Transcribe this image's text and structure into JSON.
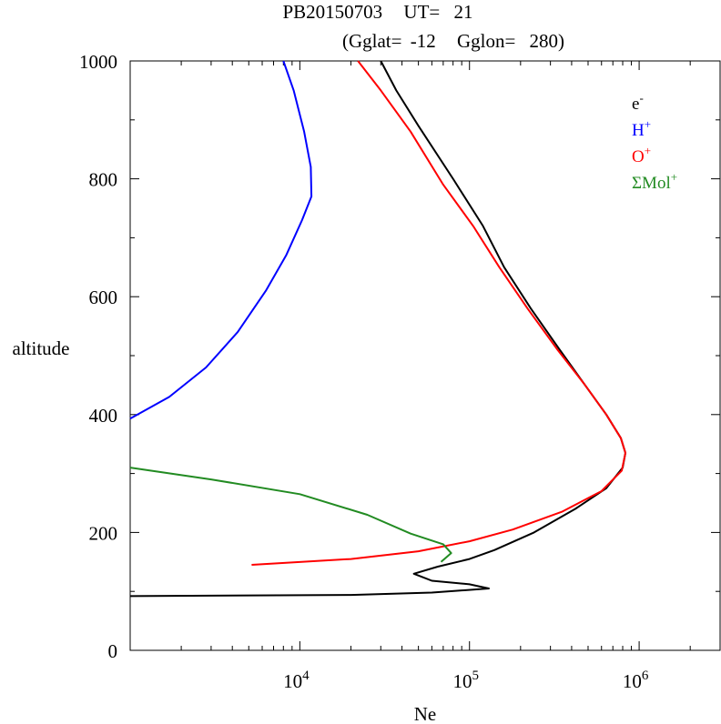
{
  "chart_data": {
    "type": "line",
    "title_line1": {
      "id": "PB20150703",
      "ut_label": "UT=",
      "ut_value": "21"
    },
    "title_line2": {
      "glat_label": "(Gglat=",
      "glat_value": "-12",
      "glon_label": "Gglon=",
      "glon_value": "280)"
    },
    "xlabel": "Ne",
    "ylabel": "altitude",
    "x_scale": "log",
    "xlim": [
      1000,
      3000000
    ],
    "ylim": [
      0,
      1000
    ],
    "x_ticks": [
      {
        "value": 10000,
        "base": "10",
        "exp": "4"
      },
      {
        "value": 100000,
        "base": "10",
        "exp": "5"
      },
      {
        "value": 1000000,
        "base": "10",
        "exp": "6"
      }
    ],
    "y_ticks": [
      {
        "value": 0,
        "label": "0"
      },
      {
        "value": 200,
        "label": "200"
      },
      {
        "value": 400,
        "label": "400"
      },
      {
        "value": 600,
        "label": "600"
      },
      {
        "value": 800,
        "label": "800"
      },
      {
        "value": 1000,
        "label": "1000"
      }
    ],
    "grid": false,
    "legend_position": "top-right",
    "series": [
      {
        "key": "e",
        "label_base": "e",
        "label_sup": "-",
        "color": "#000000",
        "points": [
          [
            1000,
            92
          ],
          [
            20000,
            94
          ],
          [
            60000,
            98
          ],
          [
            130000,
            105
          ],
          [
            100000,
            112
          ],
          [
            60000,
            118
          ],
          [
            47000,
            130
          ],
          [
            65000,
            142
          ],
          [
            100000,
            155
          ],
          [
            140000,
            170
          ],
          [
            240000,
            200
          ],
          [
            420000,
            240
          ],
          [
            640000,
            275
          ],
          [
            800000,
            310
          ],
          [
            830000,
            335
          ],
          [
            780000,
            360
          ],
          [
            640000,
            400
          ],
          [
            480000,
            450
          ],
          [
            340000,
            510
          ],
          [
            230000,
            580
          ],
          [
            160000,
            650
          ],
          [
            120000,
            720
          ],
          [
            80000,
            800
          ],
          [
            50000,
            890
          ],
          [
            37000,
            950
          ],
          [
            30000,
            1000
          ]
        ]
      },
      {
        "key": "H",
        "label_base": "H",
        "label_sup": "+",
        "color": "#0000ff",
        "points": [
          [
            1000,
            393
          ],
          [
            1700,
            430
          ],
          [
            2800,
            480
          ],
          [
            4300,
            540
          ],
          [
            6300,
            610
          ],
          [
            8300,
            670
          ],
          [
            10300,
            730
          ],
          [
            11700,
            770
          ],
          [
            11600,
            820
          ],
          [
            10600,
            880
          ],
          [
            9200,
            950
          ],
          [
            8000,
            1000
          ]
        ]
      },
      {
        "key": "O",
        "label_base": "O",
        "label_sup": "+",
        "color": "#ff0000",
        "points": [
          [
            5200,
            145
          ],
          [
            20000,
            155
          ],
          [
            50000,
            168
          ],
          [
            100000,
            185
          ],
          [
            180000,
            205
          ],
          [
            350000,
            235
          ],
          [
            600000,
            270
          ],
          [
            790000,
            305
          ],
          [
            830000,
            335
          ],
          [
            780000,
            360
          ],
          [
            640000,
            400
          ],
          [
            480000,
            450
          ],
          [
            330000,
            510
          ],
          [
            220000,
            580
          ],
          [
            150000,
            650
          ],
          [
            105000,
            720
          ],
          [
            70000,
            790
          ],
          [
            45000,
            880
          ],
          [
            30000,
            950
          ],
          [
            22000,
            1000
          ]
        ]
      },
      {
        "key": "Mol",
        "label_base": "ΣMol",
        "label_sup": "+",
        "color": "#228b22",
        "points": [
          [
            1000,
            310
          ],
          [
            3000,
            290
          ],
          [
            10000,
            265
          ],
          [
            25000,
            230
          ],
          [
            45000,
            198
          ],
          [
            70000,
            180
          ],
          [
            78000,
            165
          ],
          [
            68000,
            150
          ]
        ]
      }
    ]
  }
}
